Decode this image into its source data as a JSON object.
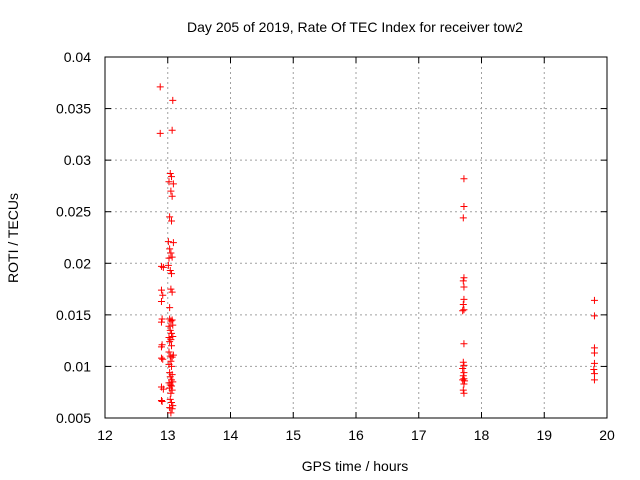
{
  "chart_data": {
    "type": "scatter",
    "title": "Day 205 of 2019, Rate Of TEC Index for receiver tow2",
    "xlabel": "GPS time / hours",
    "ylabel": "ROTI / TECUs",
    "xlim": [
      12,
      20
    ],
    "ylim": [
      0.005,
      0.04
    ],
    "xticks": [
      12,
      13,
      14,
      15,
      16,
      17,
      18,
      19,
      20
    ],
    "xtick_labels": [
      "12",
      "13",
      "14",
      "15",
      "16",
      "17",
      "18",
      "19",
      "20"
    ],
    "yticks": [
      0.005,
      0.01,
      0.015,
      0.02,
      0.025,
      0.03,
      0.035,
      0.04
    ],
    "ytick_labels": [
      "0.005",
      "0.01",
      "0.015",
      "0.02",
      "0.025",
      "0.03",
      "0.035",
      "0.04"
    ],
    "grid": true,
    "marker": "+",
    "color": "#ff0000",
    "series": [
      {
        "name": "ROTI",
        "points": [
          [
            12.88,
            0.0371
          ],
          [
            13.08,
            0.0358
          ],
          [
            12.88,
            0.0326
          ],
          [
            13.07,
            0.0329
          ],
          [
            13.04,
            0.0287
          ],
          [
            13.06,
            0.0284
          ],
          [
            13.02,
            0.0279
          ],
          [
            13.09,
            0.0277
          ],
          [
            13.05,
            0.027
          ],
          [
            13.07,
            0.0265
          ],
          [
            13.03,
            0.0245
          ],
          [
            13.06,
            0.0241
          ],
          [
            13.01,
            0.0221
          ],
          [
            13.09,
            0.022
          ],
          [
            13.03,
            0.0214
          ],
          [
            13.05,
            0.021
          ],
          [
            13.02,
            0.0205
          ],
          [
            13.07,
            0.0206
          ],
          [
            12.9,
            0.0197
          ],
          [
            12.93,
            0.0196
          ],
          [
            13.01,
            0.0198
          ],
          [
            13.04,
            0.0193
          ],
          [
            13.06,
            0.019
          ],
          [
            12.9,
            0.0174
          ],
          [
            12.92,
            0.0169
          ],
          [
            13.05,
            0.0175
          ],
          [
            13.07,
            0.0172
          ],
          [
            12.9,
            0.0163
          ],
          [
            13.03,
            0.0157
          ],
          [
            12.91,
            0.0146
          ],
          [
            12.9,
            0.0143
          ],
          [
            13.03,
            0.0146
          ],
          [
            13.05,
            0.0144
          ],
          [
            13.07,
            0.0145
          ],
          [
            13.02,
            0.0139
          ],
          [
            13.08,
            0.014
          ],
          [
            13.04,
            0.0135
          ],
          [
            13.06,
            0.0132
          ],
          [
            13.02,
            0.0128
          ],
          [
            13.05,
            0.0126
          ],
          [
            13.08,
            0.0129
          ],
          [
            13.03,
            0.0124
          ],
          [
            12.91,
            0.0121
          ],
          [
            12.9,
            0.0119
          ],
          [
            13.06,
            0.012
          ],
          [
            13.02,
            0.0114
          ],
          [
            12.9,
            0.0108
          ],
          [
            12.92,
            0.0107
          ],
          [
            13.04,
            0.011
          ],
          [
            13.07,
            0.0109
          ],
          [
            13.09,
            0.0111
          ],
          [
            13.05,
            0.0105
          ],
          [
            13.02,
            0.0102
          ],
          [
            13.06,
            0.01
          ],
          [
            13.03,
            0.0094
          ],
          [
            13.07,
            0.0092
          ],
          [
            13.04,
            0.009
          ],
          [
            13.06,
            0.0087
          ],
          [
            13.02,
            0.0084
          ],
          [
            13.08,
            0.0085
          ],
          [
            13.04,
            0.0082
          ],
          [
            13.06,
            0.0081
          ],
          [
            12.9,
            0.008
          ],
          [
            12.93,
            0.0078
          ],
          [
            13.03,
            0.0079
          ],
          [
            13.07,
            0.0077
          ],
          [
            13.05,
            0.0074
          ],
          [
            12.9,
            0.0067
          ],
          [
            12.91,
            0.0066
          ],
          [
            13.04,
            0.0068
          ],
          [
            13.06,
            0.0065
          ],
          [
            13.08,
            0.0062
          ],
          [
            13.03,
            0.006
          ],
          [
            13.07,
            0.0059
          ],
          [
            13.05,
            0.0055
          ],
          [
            17.72,
            0.0282
          ],
          [
            17.72,
            0.0255
          ],
          [
            17.71,
            0.0244
          ],
          [
            17.72,
            0.0186
          ],
          [
            17.71,
            0.0183
          ],
          [
            17.72,
            0.0177
          ],
          [
            17.72,
            0.0165
          ],
          [
            17.71,
            0.016
          ],
          [
            17.72,
            0.0155
          ],
          [
            17.7,
            0.0154
          ],
          [
            17.72,
            0.0122
          ],
          [
            17.71,
            0.0104
          ],
          [
            17.72,
            0.0101
          ],
          [
            17.7,
            0.0098
          ],
          [
            17.72,
            0.0094
          ],
          [
            17.71,
            0.0091
          ],
          [
            17.72,
            0.0088
          ],
          [
            17.7,
            0.0087
          ],
          [
            17.73,
            0.0086
          ],
          [
            17.72,
            0.0083
          ],
          [
            17.71,
            0.0077
          ],
          [
            17.72,
            0.0074
          ],
          [
            19.8,
            0.0164
          ],
          [
            19.8,
            0.0149
          ],
          [
            19.8,
            0.0118
          ],
          [
            19.8,
            0.0113
          ],
          [
            19.8,
            0.0103
          ],
          [
            19.79,
            0.0097
          ],
          [
            19.8,
            0.0093
          ],
          [
            19.8,
            0.0087
          ]
        ]
      }
    ]
  }
}
